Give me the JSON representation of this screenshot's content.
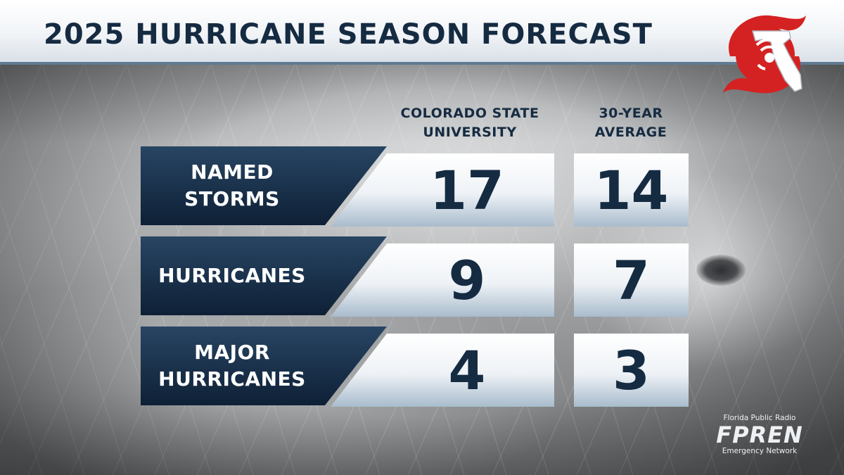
{
  "header": {
    "title": "2025 HURRICANE SEASON FORECAST"
  },
  "columns": {
    "csu_line1": "COLORADO STATE",
    "csu_line2": "UNIVERSITY",
    "avg_line1": "30-YEAR",
    "avg_line2": "AVERAGE"
  },
  "rows": [
    {
      "label_line1": "NAMED",
      "label_line2": "STORMS",
      "csu": "17",
      "avg": "14"
    },
    {
      "label_line1": "HURRICANES",
      "label_line2": "",
      "csu": "9",
      "avg": "7"
    },
    {
      "label_line1": "MAJOR",
      "label_line2": "HURRICANES",
      "csu": "4",
      "avg": "3"
    }
  ],
  "footer": {
    "line1": "Florida Public Radio",
    "brand": "FPREN",
    "line2": "Emergency Network"
  },
  "colors": {
    "navy": "#152b42",
    "accent_red": "#d42222",
    "band_steel": "#5f7a92"
  },
  "icons": {
    "logo": "florida-hurricane-logo-icon"
  }
}
